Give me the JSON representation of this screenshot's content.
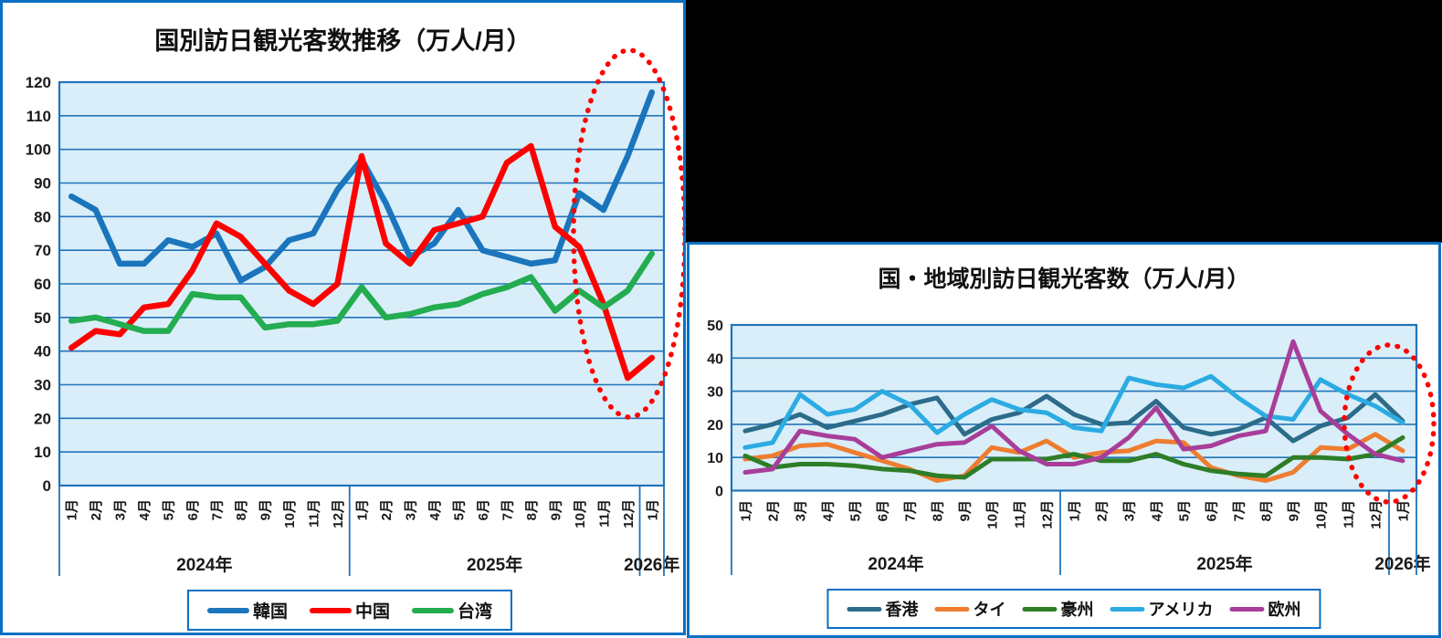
{
  "style": {
    "frame_border": "#0A70C4",
    "grid": "#2273B9",
    "plot_bg": "#D9EEF8",
    "annotation": "#FF0000",
    "black_panel": "#000000"
  },
  "chart_data": [
    {
      "id": "left",
      "type": "line",
      "title": "国別訪日観光客数推移（万人/月）",
      "xlabel": "",
      "ylabel": "",
      "ylim": [
        0,
        120
      ],
      "ystep": 10,
      "grid": true,
      "legend_position": "bottom",
      "y_ticks": [
        "0",
        "10",
        "20",
        "30",
        "40",
        "50",
        "60",
        "70",
        "80",
        "90",
        "100",
        "110",
        "120"
      ],
      "categories": [
        "1月",
        "2月",
        "3月",
        "4月",
        "5月",
        "6月",
        "7月",
        "8月",
        "9月",
        "10月",
        "11月",
        "12月",
        "1月",
        "2月",
        "3月",
        "4月",
        "5月",
        "6月",
        "7月",
        "8月",
        "9月",
        "10月",
        "11月",
        "12月",
        "1月"
      ],
      "year_groups": [
        {
          "label": "2024年",
          "months": 12
        },
        {
          "label": "2025年",
          "months": 12
        },
        {
          "label": "2026年",
          "months": 1
        }
      ],
      "series": [
        {
          "name": "韓国",
          "color": "#1B75BC",
          "values": [
            86,
            82,
            66,
            66,
            73,
            71,
            75,
            61,
            65,
            73,
            75,
            88,
            97,
            84,
            68,
            72,
            82,
            70,
            68,
            66,
            67,
            87,
            82,
            98,
            117
          ]
        },
        {
          "name": "中国",
          "color": "#FE0000",
          "values": [
            41,
            46,
            45,
            53,
            54,
            64,
            78,
            74,
            66,
            58,
            54,
            60,
            98,
            72,
            66,
            76,
            78,
            80,
            96,
            101,
            77,
            71,
            54,
            32,
            38
          ]
        },
        {
          "name": "台湾",
          "color": "#23AC50",
          "values": [
            49,
            50,
            48,
            46,
            46,
            57,
            56,
            56,
            47,
            48,
            48,
            49,
            59,
            50,
            51,
            53,
            54,
            57,
            59,
            62,
            52,
            58,
            53,
            58,
            69
          ]
        }
      ],
      "annotation": {
        "shape": "dotted-ellipse",
        "color": "#FF0000",
        "around": "2025年11月〜2026年1月"
      }
    },
    {
      "id": "right",
      "type": "line",
      "title": "国・地域別訪日観光客数（万人/月）",
      "xlabel": "",
      "ylabel": "",
      "ylim": [
        0,
        50
      ],
      "ystep": 10,
      "grid": true,
      "legend_position": "bottom",
      "y_ticks": [
        "0",
        "10",
        "20",
        "30",
        "40",
        "50"
      ],
      "categories": [
        "1月",
        "2月",
        "3月",
        "4月",
        "5月",
        "6月",
        "7月",
        "8月",
        "9月",
        "10月",
        "11月",
        "12月",
        "1月",
        "2月",
        "3月",
        "4月",
        "5月",
        "6月",
        "7月",
        "8月",
        "9月",
        "10月",
        "11月",
        "12月",
        "1月"
      ],
      "year_groups": [
        {
          "label": "2024年",
          "months": 12
        },
        {
          "label": "2025年",
          "months": 12
        },
        {
          "label": "2026年",
          "months": 1
        }
      ],
      "series": [
        {
          "name": "香港",
          "color": "#2C6B8A",
          "values": [
            18,
            20,
            23,
            19,
            21,
            23,
            26,
            28,
            17,
            21.5,
            23.5,
            28.5,
            23,
            20,
            20.5,
            27,
            19,
            17,
            18.5,
            22,
            15,
            19.5,
            22,
            29,
            21
          ]
        },
        {
          "name": "タイ",
          "color": "#EE7D30",
          "values": [
            9.5,
            10.5,
            13.5,
            14,
            11.5,
            9,
            6.5,
            3,
            4.5,
            13,
            11.5,
            15,
            10,
            11.5,
            12,
            15,
            14.5,
            7,
            4.5,
            3,
            5.5,
            13,
            12.5,
            17,
            12
          ]
        },
        {
          "name": "豪州",
          "color": "#2E7D27",
          "values": [
            10.5,
            7,
            8,
            8,
            7.5,
            6.5,
            6,
            4.5,
            4,
            9.5,
            9.5,
            9.5,
            11,
            9,
            9,
            11,
            8,
            6,
            5,
            4.5,
            10,
            10,
            9.5,
            11,
            16
          ]
        },
        {
          "name": "アメリカ",
          "color": "#2BABE2",
          "values": [
            13,
            14.5,
            29,
            23,
            24.5,
            30,
            26,
            17.5,
            23,
            27.5,
            24.5,
            23.5,
            19,
            18,
            34,
            32,
            31,
            34.5,
            28,
            22.5,
            21.5,
            33.5,
            29,
            25.5,
            20.5
          ]
        },
        {
          "name": "欧州",
          "color": "#A83E99",
          "values": [
            5.5,
            6.5,
            18,
            16.5,
            15.5,
            10,
            12,
            14,
            14.5,
            19.5,
            12,
            8,
            8,
            10,
            16,
            25,
            12.5,
            13.5,
            16.5,
            18,
            45,
            24,
            17,
            11,
            9
          ]
        }
      ],
      "annotation": {
        "shape": "dotted-ellipse",
        "color": "#FF0000",
        "around": "2025年12月〜2026年1月"
      }
    }
  ]
}
